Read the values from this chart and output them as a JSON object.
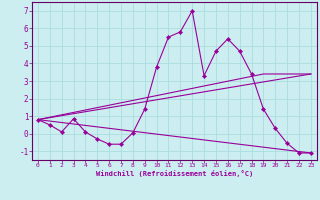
{
  "xlabel": "Windchill (Refroidissement éolien,°C)",
  "background_color": "#cceef0",
  "grid_color": "#aadddd",
  "line_color": "#990099",
  "spine_color": "#660066",
  "xlim": [
    -0.5,
    23.5
  ],
  "ylim": [
    -1.5,
    7.5
  ],
  "xticks": [
    0,
    1,
    2,
    3,
    4,
    5,
    6,
    7,
    8,
    9,
    10,
    11,
    12,
    13,
    14,
    15,
    16,
    17,
    18,
    19,
    20,
    21,
    22,
    23
  ],
  "yticks": [
    -1,
    0,
    1,
    2,
    3,
    4,
    5,
    6,
    7
  ],
  "series0_x": [
    0,
    1,
    2,
    3,
    4,
    5,
    6,
    7,
    8,
    9,
    10,
    11,
    12,
    13,
    14,
    15,
    16,
    17,
    18,
    19,
    20,
    21,
    22,
    23
  ],
  "series0_y": [
    0.8,
    0.5,
    0.1,
    0.85,
    0.1,
    -0.3,
    -0.6,
    -0.6,
    0.05,
    1.4,
    3.8,
    5.5,
    5.8,
    7.0,
    3.3,
    4.7,
    5.4,
    4.7,
    3.4,
    1.4,
    0.3,
    -0.55,
    -1.1,
    -1.1
  ],
  "series1_x": [
    0,
    23
  ],
  "series1_y": [
    0.8,
    -1.1
  ],
  "series2_x": [
    0,
    19,
    23
  ],
  "series2_y": [
    0.8,
    3.4,
    3.4
  ],
  "series3_x": [
    0,
    23
  ],
  "series3_y": [
    0.8,
    3.4
  ],
  "xlabel_fontsize": 5.0,
  "tick_fontsize_x": 4.5,
  "tick_fontsize_y": 5.5
}
